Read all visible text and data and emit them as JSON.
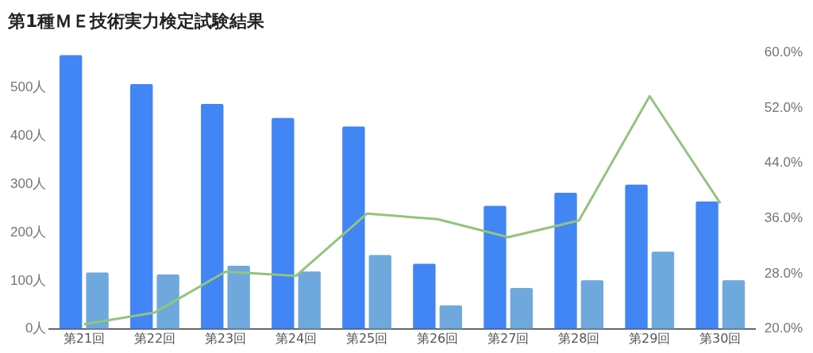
{
  "chart_data": {
    "type": "bar",
    "title": "第1種ＭＥ技術実力検定試験結果",
    "categories": [
      "第21回",
      "第22回",
      "第23回",
      "第24回",
      "第25回",
      "第26回",
      "第27回",
      "第28回",
      "第29回",
      "第30回"
    ],
    "series": [
      {
        "color": "#4285f4",
        "values": [
          567,
          507,
          466,
          437,
          419,
          135,
          255,
          282,
          299,
          264
        ]
      },
      {
        "color": "#6fa8dc",
        "values": [
          117,
          113,
          131,
          119,
          153,
          49,
          85,
          101,
          160,
          101
        ]
      },
      {
        "type": "line",
        "axis": "y2",
        "color": "#93c47d",
        "values": [
          20.7,
          22.4,
          28.3,
          27.7,
          36.7,
          35.9,
          33.3,
          35.7,
          53.7,
          38.2
        ]
      }
    ],
    "ylim": [
      0,
      572
    ],
    "yticks": [
      {
        "value": 0,
        "label": "0人"
      },
      {
        "value": 100,
        "label": "100人"
      },
      {
        "value": 200,
        "label": "200人"
      },
      {
        "value": 300,
        "label": "300人"
      },
      {
        "value": 400,
        "label": "400人"
      },
      {
        "value": 500,
        "label": "500人"
      }
    ],
    "y2lim": [
      20,
      60
    ],
    "y2ticks": [
      {
        "value": 20,
        "label": "20.0%"
      },
      {
        "value": 28,
        "label": "28.0%"
      },
      {
        "value": 36,
        "label": "36.0%"
      },
      {
        "value": 44,
        "label": "44.0%"
      },
      {
        "value": 52,
        "label": "52.0%"
      },
      {
        "value": 60,
        "label": "60.0%"
      }
    ],
    "grid": false,
    "legend": false,
    "marker": "none",
    "line_style": "solid"
  }
}
